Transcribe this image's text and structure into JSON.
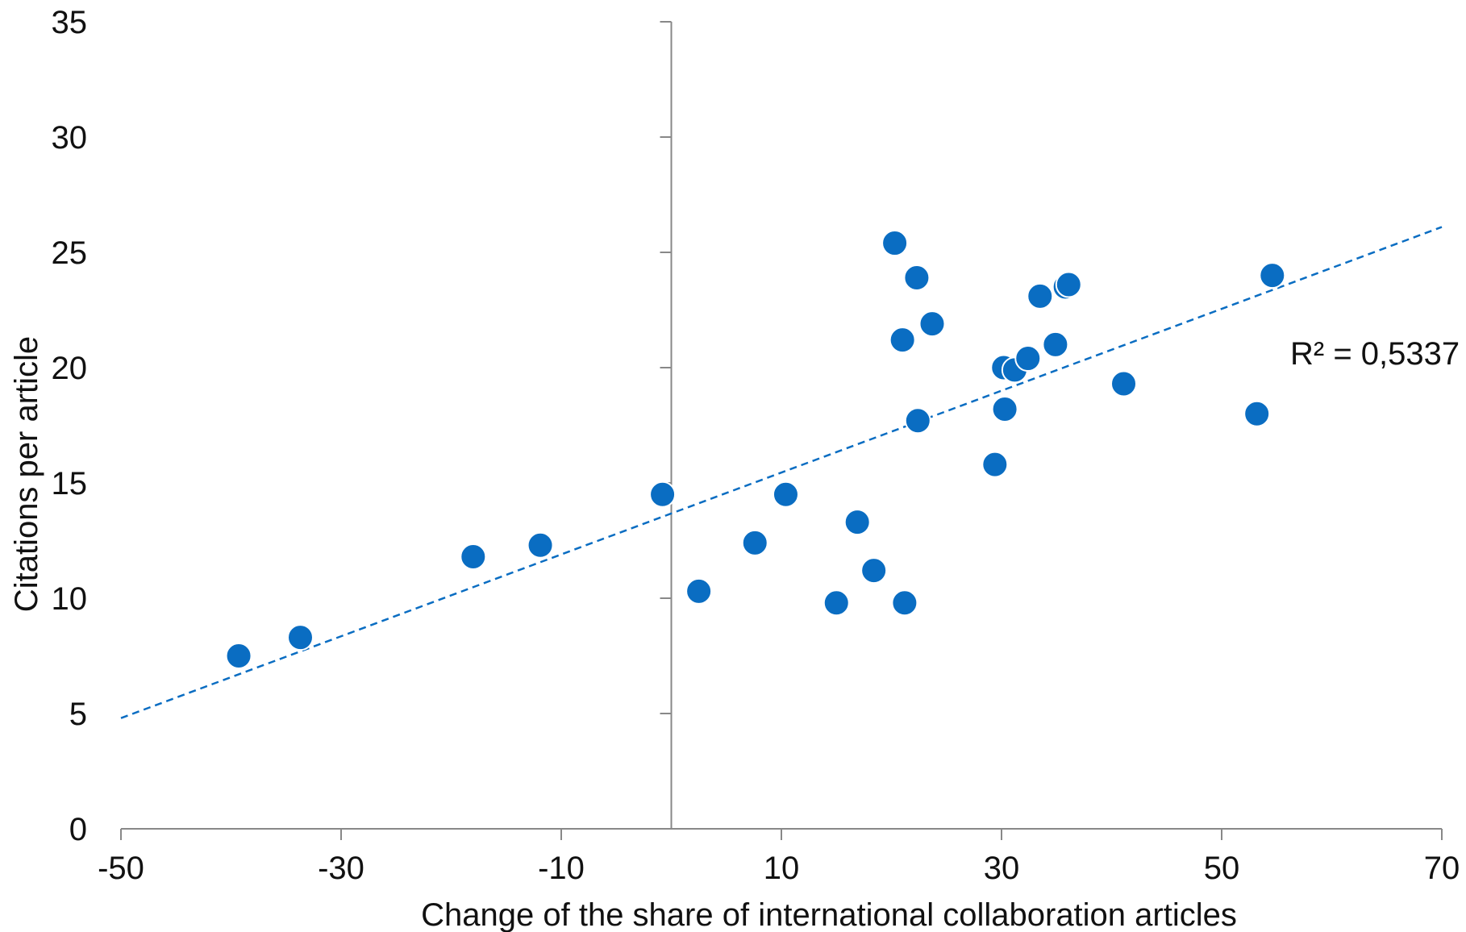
{
  "chart_data": {
    "type": "scatter",
    "xlabel": "Change of the share of international collaboration articles",
    "ylabel": "Citations per article",
    "xlim": [
      -50,
      70
    ],
    "ylim": [
      0,
      35
    ],
    "x_ticks": [
      "-50",
      "-30",
      "-10",
      "10",
      "30",
      "50",
      "70"
    ],
    "y_ticks": [
      "0",
      "5",
      "10",
      "15",
      "20",
      "25",
      "30",
      "35"
    ],
    "grid": false,
    "points": [
      {
        "x": -39.3,
        "y": 7.5
      },
      {
        "x": -33.7,
        "y": 8.3
      },
      {
        "x": -18.0,
        "y": 11.8
      },
      {
        "x": -11.9,
        "y": 12.3
      },
      {
        "x": -0.8,
        "y": 14.5
      },
      {
        "x": 2.5,
        "y": 10.3
      },
      {
        "x": 7.6,
        "y": 12.4
      },
      {
        "x": 10.4,
        "y": 14.5
      },
      {
        "x": 15.0,
        "y": 9.8
      },
      {
        "x": 16.9,
        "y": 13.3
      },
      {
        "x": 18.4,
        "y": 11.2
      },
      {
        "x": 20.3,
        "y": 25.4
      },
      {
        "x": 21.0,
        "y": 21.2
      },
      {
        "x": 21.2,
        "y": 9.8
      },
      {
        "x": 22.3,
        "y": 23.9
      },
      {
        "x": 22.4,
        "y": 17.7
      },
      {
        "x": 23.7,
        "y": 21.9
      },
      {
        "x": 29.4,
        "y": 15.8
      },
      {
        "x": 30.3,
        "y": 18.2
      },
      {
        "x": 30.2,
        "y": 20.0
      },
      {
        "x": 31.2,
        "y": 19.9
      },
      {
        "x": 32.4,
        "y": 20.4
      },
      {
        "x": 33.5,
        "y": 23.1
      },
      {
        "x": 34.9,
        "y": 21.0
      },
      {
        "x": 35.8,
        "y": 23.5
      },
      {
        "x": 36.1,
        "y": 23.6
      },
      {
        "x": 41.1,
        "y": 19.3
      },
      {
        "x": 53.2,
        "y": 18.0
      },
      {
        "x": 54.6,
        "y": 24.0
      }
    ],
    "trendline": {
      "x": [
        -50,
        70
      ],
      "y": [
        4.8,
        26.1
      ],
      "style": "dashed"
    },
    "r2_label": "R² = 0,5337",
    "colors": {
      "points": "#0a6dc2",
      "trendline": "#0a6dc2",
      "axis": "#888888",
      "text": "#111111"
    }
  }
}
